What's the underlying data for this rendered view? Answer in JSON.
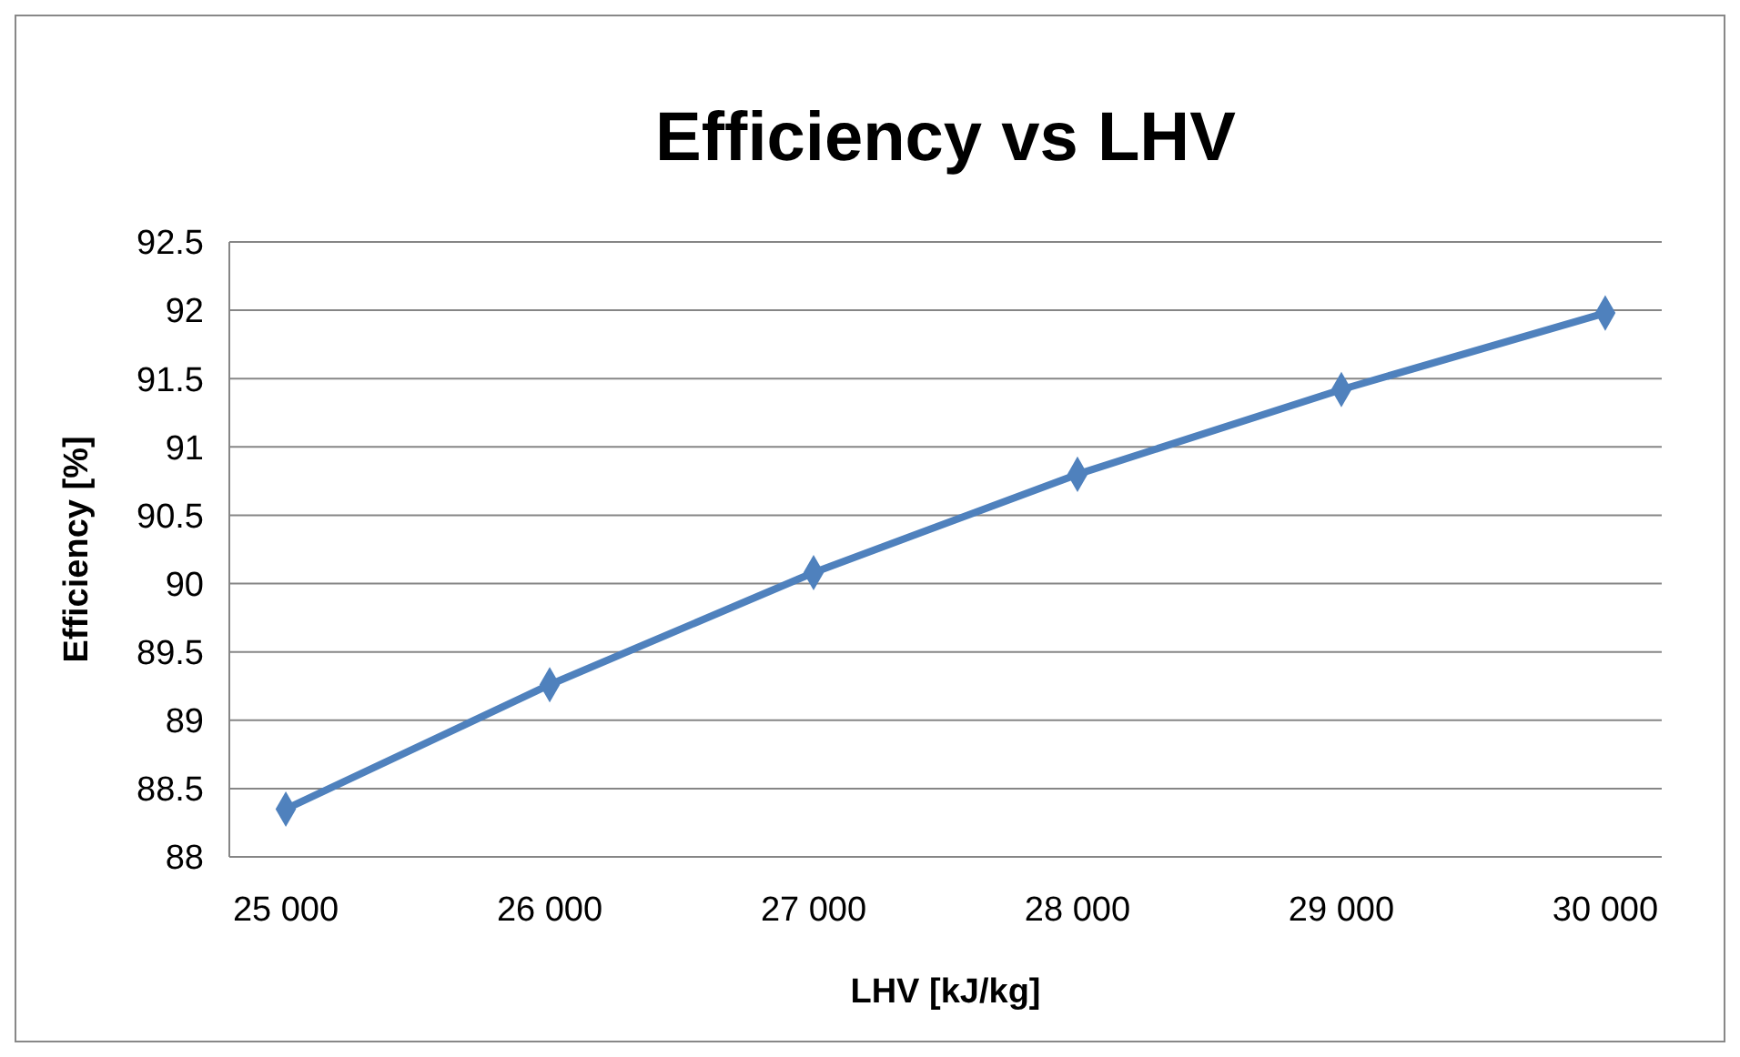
{
  "chart_data": {
    "type": "line",
    "title": "Efficiency vs LHV",
    "xlabel": "LHV [kJ/kg]",
    "ylabel": "Efficiency [%]",
    "categories": [
      "25 000",
      "26 000",
      "27 000",
      "28 000",
      "29 000",
      "30 000"
    ],
    "series": [
      {
        "color": "#4f81bd",
        "values": [
          88.35,
          89.26,
          90.08,
          90.8,
          91.42,
          91.98
        ]
      }
    ],
    "ylim": [
      88,
      92.5
    ],
    "yticks": [
      88,
      88.5,
      89,
      89.5,
      90,
      90.5,
      91,
      91.5,
      92,
      92.5
    ],
    "grid": "y",
    "marker": "diamond",
    "line_style": "solid"
  }
}
